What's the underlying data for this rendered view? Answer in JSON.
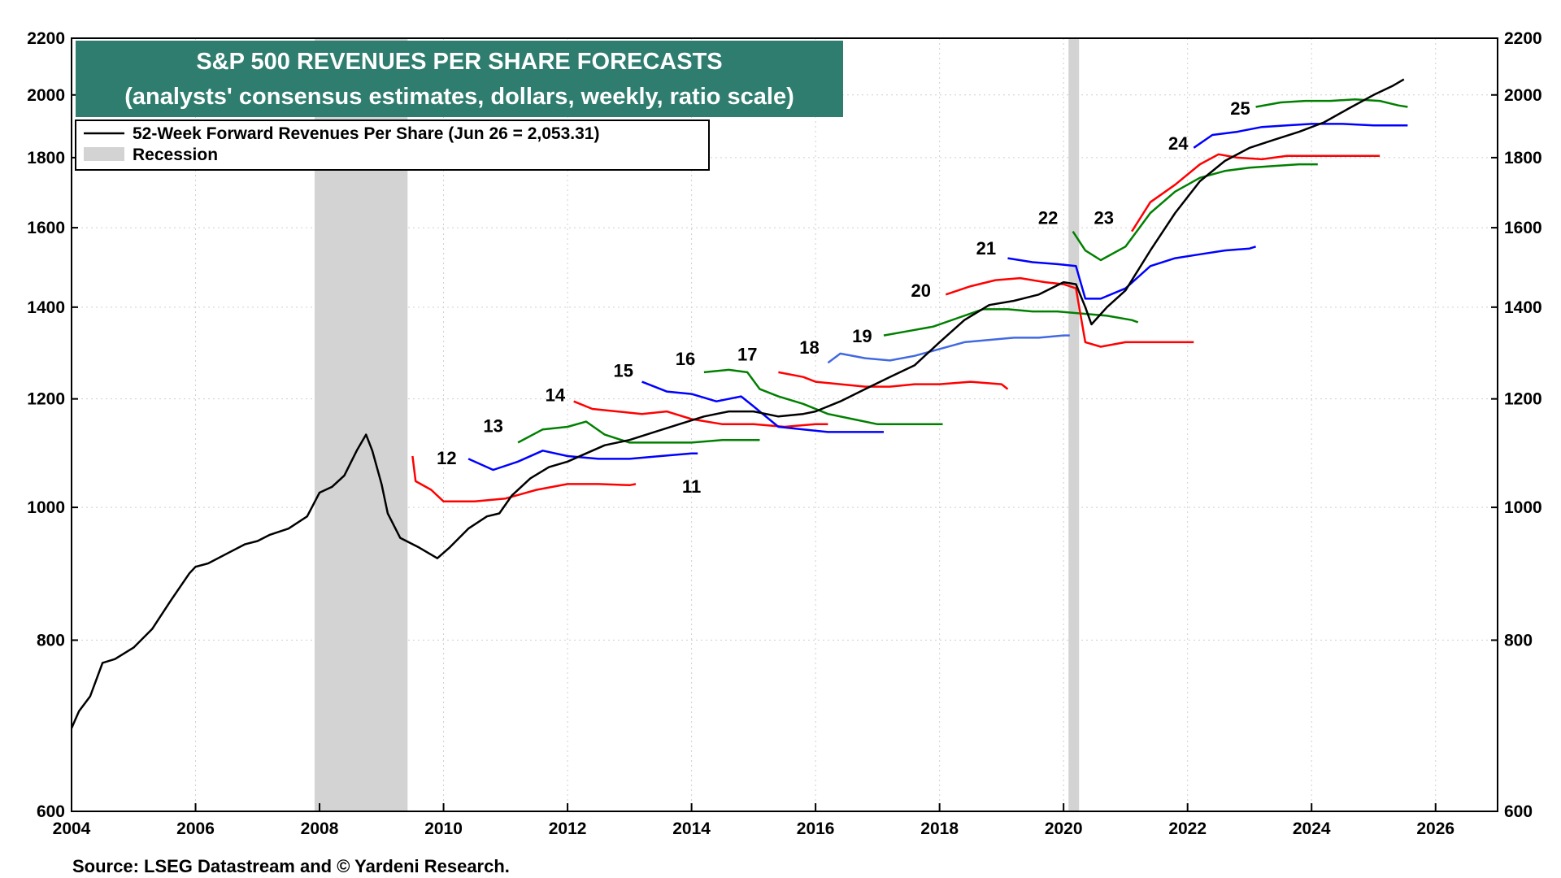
{
  "chart_data": {
    "type": "line",
    "title": "S&P 500 REVENUES PER SHARE FORECASTS",
    "subtitle": "(analysts' consensus estimates, dollars, weekly, ratio scale)",
    "y_scale": "log",
    "ylim": [
      600,
      2200
    ],
    "xlim": [
      2004.0,
      2027.0
    ],
    "yticks": [
      600,
      800,
      1000,
      1200,
      1400,
      1600,
      1800,
      2000,
      2200
    ],
    "xticks": [
      "2004",
      "2006",
      "2008",
      "2010",
      "2012",
      "2014",
      "2016",
      "2018",
      "2020",
      "2022",
      "2024",
      "2026"
    ],
    "grid": true,
    "legend": {
      "placement": "top-left",
      "entries": [
        {
          "label": "52-Week Forward Revenues Per Share (Jun 26 = 2,053.31)",
          "color": "#000000"
        },
        {
          "label": "Recession",
          "color": "#d3d3d3"
        }
      ]
    },
    "recessions": [
      {
        "start": 2007.92,
        "end": 2009.42
      },
      {
        "start": 2020.08,
        "end": 2020.25
      }
    ],
    "forward": {
      "name": "52-Week Forward Revenues Per Share (Jun 26 = 2,053.31)",
      "color": "#000000",
      "points": [
        [
          2004.0,
          690
        ],
        [
          2004.12,
          710
        ],
        [
          2004.3,
          728
        ],
        [
          2004.5,
          770
        ],
        [
          2004.7,
          775
        ],
        [
          2005.0,
          790
        ],
        [
          2005.3,
          815
        ],
        [
          2005.6,
          855
        ],
        [
          2005.9,
          895
        ],
        [
          2006.0,
          905
        ],
        [
          2006.2,
          910
        ],
        [
          2006.5,
          925
        ],
        [
          2006.8,
          940
        ],
        [
          2007.0,
          945
        ],
        [
          2007.2,
          955
        ],
        [
          2007.5,
          965
        ],
        [
          2007.8,
          985
        ],
        [
          2008.0,
          1025
        ],
        [
          2008.2,
          1035
        ],
        [
          2008.4,
          1055
        ],
        [
          2008.6,
          1100
        ],
        [
          2008.75,
          1130
        ],
        [
          2008.85,
          1100
        ],
        [
          2009.0,
          1040
        ],
        [
          2009.1,
          990
        ],
        [
          2009.3,
          950
        ],
        [
          2009.6,
          935
        ],
        [
          2009.9,
          918
        ],
        [
          2010.1,
          935
        ],
        [
          2010.4,
          965
        ],
        [
          2010.7,
          985
        ],
        [
          2010.9,
          990
        ],
        [
          2011.1,
          1020
        ],
        [
          2011.4,
          1050
        ],
        [
          2011.7,
          1070
        ],
        [
          2012.0,
          1080
        ],
        [
          2012.3,
          1095
        ],
        [
          2012.6,
          1110
        ],
        [
          2013.0,
          1120
        ],
        [
          2013.4,
          1135
        ],
        [
          2013.8,
          1150
        ],
        [
          2014.2,
          1165
        ],
        [
          2014.6,
          1175
        ],
        [
          2015.0,
          1175
        ],
        [
          2015.4,
          1165
        ],
        [
          2015.8,
          1170
        ],
        [
          2016.0,
          1175
        ],
        [
          2016.4,
          1195
        ],
        [
          2016.8,
          1220
        ],
        [
          2017.2,
          1245
        ],
        [
          2017.6,
          1270
        ],
        [
          2018.0,
          1320
        ],
        [
          2018.4,
          1370
        ],
        [
          2018.8,
          1405
        ],
        [
          2019.2,
          1415
        ],
        [
          2019.6,
          1430
        ],
        [
          2020.0,
          1460
        ],
        [
          2020.2,
          1455
        ],
        [
          2020.35,
          1400
        ],
        [
          2020.45,
          1360
        ],
        [
          2020.7,
          1400
        ],
        [
          2021.0,
          1440
        ],
        [
          2021.4,
          1540
        ],
        [
          2021.8,
          1640
        ],
        [
          2022.2,
          1730
        ],
        [
          2022.6,
          1790
        ],
        [
          2023.0,
          1830
        ],
        [
          2023.4,
          1855
        ],
        [
          2023.8,
          1880
        ],
        [
          2024.2,
          1910
        ],
        [
          2024.6,
          1955
        ],
        [
          2025.0,
          2000
        ],
        [
          2025.3,
          2030
        ],
        [
          2025.49,
          2053
        ]
      ]
    },
    "forecasts": [
      {
        "label": "11",
        "color": "#ff0000",
        "label_x": 2014.0,
        "label_y": 1025,
        "points": [
          [
            2009.5,
            1090
          ],
          [
            2009.55,
            1045
          ],
          [
            2009.8,
            1030
          ],
          [
            2010.0,
            1010
          ],
          [
            2010.5,
            1010
          ],
          [
            2011.0,
            1015
          ],
          [
            2011.5,
            1030
          ],
          [
            2012.0,
            1040
          ],
          [
            2012.5,
            1040
          ],
          [
            2013.0,
            1038
          ],
          [
            2013.1,
            1040
          ]
        ]
      },
      {
        "label": "12",
        "color": "#0000ff",
        "label_x": 2010.05,
        "label_y": 1075,
        "points": [
          [
            2010.4,
            1085
          ],
          [
            2010.8,
            1065
          ],
          [
            2011.2,
            1080
          ],
          [
            2011.6,
            1100
          ],
          [
            2012.0,
            1090
          ],
          [
            2012.5,
            1085
          ],
          [
            2013.0,
            1085
          ],
          [
            2013.5,
            1090
          ],
          [
            2014.0,
            1095
          ],
          [
            2014.1,
            1095
          ]
        ]
      },
      {
        "label": "13",
        "color": "#008000",
        "label_x": 2010.8,
        "label_y": 1135,
        "points": [
          [
            2011.2,
            1115
          ],
          [
            2011.6,
            1140
          ],
          [
            2012.0,
            1145
          ],
          [
            2012.3,
            1155
          ],
          [
            2012.6,
            1130
          ],
          [
            2013.0,
            1115
          ],
          [
            2013.5,
            1115
          ],
          [
            2014.0,
            1115
          ],
          [
            2014.5,
            1120
          ],
          [
            2015.0,
            1120
          ],
          [
            2015.1,
            1120
          ]
        ]
      },
      {
        "label": "14",
        "color": "#ff0000",
        "label_x": 2011.8,
        "label_y": 1195,
        "points": [
          [
            2012.1,
            1195
          ],
          [
            2012.4,
            1180
          ],
          [
            2012.8,
            1175
          ],
          [
            2013.2,
            1170
          ],
          [
            2013.6,
            1175
          ],
          [
            2014.0,
            1160
          ],
          [
            2014.5,
            1150
          ],
          [
            2015.0,
            1150
          ],
          [
            2015.5,
            1145
          ],
          [
            2016.0,
            1150
          ],
          [
            2016.2,
            1150
          ]
        ]
      },
      {
        "label": "15",
        "color": "#0000ff",
        "label_x": 2012.9,
        "label_y": 1245,
        "points": [
          [
            2013.2,
            1235
          ],
          [
            2013.6,
            1215
          ],
          [
            2014.0,
            1210
          ],
          [
            2014.4,
            1195
          ],
          [
            2014.8,
            1205
          ],
          [
            2015.0,
            1185
          ],
          [
            2015.4,
            1145
          ],
          [
            2015.8,
            1140
          ],
          [
            2016.2,
            1135
          ],
          [
            2016.6,
            1135
          ],
          [
            2017.0,
            1135
          ],
          [
            2017.1,
            1135
          ]
        ]
      },
      {
        "label": "16",
        "color": "#008000",
        "label_x": 2013.9,
        "label_y": 1270,
        "points": [
          [
            2014.2,
            1255
          ],
          [
            2014.6,
            1260
          ],
          [
            2014.9,
            1255
          ],
          [
            2015.1,
            1220
          ],
          [
            2015.4,
            1205
          ],
          [
            2015.8,
            1190
          ],
          [
            2016.2,
            1170
          ],
          [
            2016.6,
            1160
          ],
          [
            2017.0,
            1150
          ],
          [
            2017.5,
            1150
          ],
          [
            2018.0,
            1150
          ],
          [
            2018.05,
            1150
          ]
        ]
      },
      {
        "label": "17",
        "color": "#ff0000",
        "label_x": 2014.9,
        "label_y": 1280,
        "points": [
          [
            2015.4,
            1255
          ],
          [
            2015.8,
            1245
          ],
          [
            2016.0,
            1235
          ],
          [
            2016.4,
            1230
          ],
          [
            2016.8,
            1225
          ],
          [
            2017.2,
            1225
          ],
          [
            2017.6,
            1230
          ],
          [
            2018.0,
            1230
          ],
          [
            2018.5,
            1235
          ],
          [
            2019.0,
            1230
          ],
          [
            2019.1,
            1220
          ]
        ]
      },
      {
        "label": "18",
        "color": "#4169e1",
        "label_x": 2015.9,
        "label_y": 1295,
        "points": [
          [
            2016.2,
            1275
          ],
          [
            2016.4,
            1295
          ],
          [
            2016.8,
            1285
          ],
          [
            2017.2,
            1280
          ],
          [
            2017.6,
            1290
          ],
          [
            2018.0,
            1305
          ],
          [
            2018.4,
            1320
          ],
          [
            2018.8,
            1325
          ],
          [
            2019.2,
            1330
          ],
          [
            2019.6,
            1330
          ],
          [
            2020.0,
            1335
          ],
          [
            2020.1,
            1335
          ]
        ]
      },
      {
        "label": "19",
        "color": "#008000",
        "label_x": 2016.75,
        "label_y": 1320,
        "points": [
          [
            2017.1,
            1335
          ],
          [
            2017.5,
            1345
          ],
          [
            2017.9,
            1355
          ],
          [
            2018.3,
            1375
          ],
          [
            2018.7,
            1395
          ],
          [
            2019.1,
            1395
          ],
          [
            2019.5,
            1390
          ],
          [
            2019.9,
            1390
          ],
          [
            2020.3,
            1385
          ],
          [
            2020.7,
            1380
          ],
          [
            2021.1,
            1370
          ],
          [
            2021.2,
            1365
          ]
        ]
      },
      {
        "label": "20",
        "color": "#ff0000",
        "label_x": 2017.7,
        "label_y": 1425,
        "points": [
          [
            2018.1,
            1430
          ],
          [
            2018.5,
            1450
          ],
          [
            2018.9,
            1465
          ],
          [
            2019.3,
            1470
          ],
          [
            2019.7,
            1460
          ],
          [
            2020.0,
            1455
          ],
          [
            2020.2,
            1445
          ],
          [
            2020.35,
            1320
          ],
          [
            2020.6,
            1310
          ],
          [
            2021.0,
            1320
          ],
          [
            2021.5,
            1320
          ],
          [
            2022.0,
            1320
          ],
          [
            2022.1,
            1320
          ]
        ]
      },
      {
        "label": "21",
        "color": "#0000ff",
        "label_x": 2018.75,
        "label_y": 1530,
        "points": [
          [
            2019.1,
            1520
          ],
          [
            2019.5,
            1510
          ],
          [
            2019.9,
            1505
          ],
          [
            2020.2,
            1500
          ],
          [
            2020.35,
            1420
          ],
          [
            2020.6,
            1420
          ],
          [
            2021.0,
            1445
          ],
          [
            2021.4,
            1500
          ],
          [
            2021.8,
            1520
          ],
          [
            2022.2,
            1530
          ],
          [
            2022.6,
            1540
          ],
          [
            2023.0,
            1545
          ],
          [
            2023.1,
            1550
          ]
        ]
      },
      {
        "label": "22",
        "color": "#008000",
        "label_x": 2019.75,
        "label_y": 1610,
        "points": [
          [
            2020.15,
            1590
          ],
          [
            2020.35,
            1540
          ],
          [
            2020.6,
            1515
          ],
          [
            2021.0,
            1550
          ],
          [
            2021.4,
            1640
          ],
          [
            2021.8,
            1700
          ],
          [
            2022.2,
            1740
          ],
          [
            2022.6,
            1760
          ],
          [
            2023.0,
            1770
          ],
          [
            2023.4,
            1775
          ],
          [
            2023.8,
            1780
          ],
          [
            2024.1,
            1780
          ]
        ]
      },
      {
        "label": "23",
        "color": "#ff0000",
        "label_x": 2020.65,
        "label_y": 1610,
        "points": [
          [
            2021.1,
            1590
          ],
          [
            2021.4,
            1670
          ],
          [
            2021.8,
            1720
          ],
          [
            2022.2,
            1780
          ],
          [
            2022.5,
            1810
          ],
          [
            2022.8,
            1800
          ],
          [
            2023.2,
            1795
          ],
          [
            2023.6,
            1805
          ],
          [
            2024.0,
            1805
          ],
          [
            2024.5,
            1805
          ],
          [
            2025.0,
            1805
          ],
          [
            2025.1,
            1805
          ]
        ]
      },
      {
        "label": "24",
        "color": "#0000ff",
        "label_x": 2021.85,
        "label_y": 1825,
        "points": [
          [
            2022.1,
            1830
          ],
          [
            2022.4,
            1870
          ],
          [
            2022.8,
            1880
          ],
          [
            2023.2,
            1895
          ],
          [
            2023.6,
            1900
          ],
          [
            2024.0,
            1905
          ],
          [
            2024.5,
            1905
          ],
          [
            2025.0,
            1900
          ],
          [
            2025.5,
            1900
          ],
          [
            2025.55,
            1900
          ]
        ]
      },
      {
        "label": "25",
        "color": "#008000",
        "label_x": 2022.85,
        "label_y": 1935,
        "points": [
          [
            2023.1,
            1960
          ],
          [
            2023.5,
            1975
          ],
          [
            2023.9,
            1980
          ],
          [
            2024.3,
            1980
          ],
          [
            2024.7,
            1985
          ],
          [
            2025.1,
            1980
          ],
          [
            2025.4,
            1965
          ],
          [
            2025.55,
            1960
          ]
        ]
      }
    ],
    "source": "Source: LSEG Datastream and © Yardeni Research."
  }
}
